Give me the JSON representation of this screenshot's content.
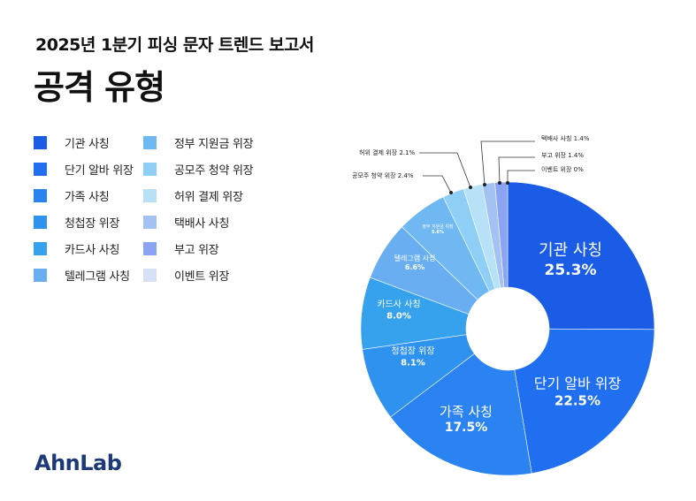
{
  "header": {
    "subtitle": "2025년 1분기 피싱 문자 트렌드 보고서",
    "title": "공격 유형"
  },
  "logo": "AhnLab",
  "chart_data": {
    "type": "pie",
    "donut": true,
    "legend_position": "left",
    "slices": [
      {
        "label": "기관 사칭",
        "value": 25.3,
        "value_label": "25.3%",
        "color": "#1a5ce6"
      },
      {
        "label": "단기 알바 위장",
        "value": 22.5,
        "value_label": "22.5%",
        "color": "#1f6ff0"
      },
      {
        "label": "가족 사칭",
        "value": 17.5,
        "value_label": "17.5%",
        "color": "#2a83f0"
      },
      {
        "label": "청첩장 위장",
        "value": 8.1,
        "value_label": "8.1%",
        "color": "#2f92ee"
      },
      {
        "label": "카드사 사칭",
        "value": 8.0,
        "value_label": "8.0%",
        "color": "#36a1ec"
      },
      {
        "label": "텔레그램 사칭",
        "value": 6.6,
        "value_label": "6.6%",
        "color": "#68aef0"
      },
      {
        "label": "정부 지원금 위장",
        "value": 5.6,
        "value_label": "5.6%",
        "color": "#70b8f2"
      },
      {
        "label": "공모주 청약 위장",
        "value": 2.4,
        "value_label": "2.4%",
        "color": "#8fcff5"
      },
      {
        "label": "허위 결제 위장",
        "value": 2.1,
        "value_label": "2.1%",
        "color": "#b6e1f7"
      },
      {
        "label": "택배사 사칭",
        "value": 1.4,
        "value_label": "1.4%",
        "color": "#a3c1f2"
      },
      {
        "label": "부고 위장",
        "value": 1.4,
        "value_label": "1.4%",
        "color": "#8aa3f3"
      },
      {
        "label": "이벤트 위장",
        "value": 0,
        "value_label": "0%",
        "color": "#d8e0f7"
      }
    ]
  }
}
